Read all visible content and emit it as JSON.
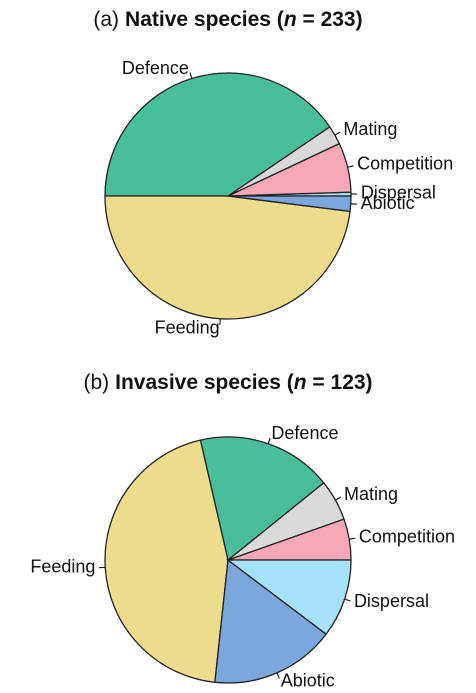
{
  "chart_data": [
    {
      "type": "pie",
      "panel": "(a)",
      "title": [
        "Native species (",
        "n",
        " = 233)"
      ],
      "categories": [
        "Dispersal",
        "Competition",
        "Mating",
        "Defence",
        "Feeding",
        "Abiotic"
      ],
      "values": [
        0.5,
        6.5,
        2.5,
        40.5,
        48,
        2
      ],
      "colors": [
        "#a6e1fa",
        "#f7a8b8",
        "#d9d9d9",
        "#48bf9a",
        "#ecdc8c",
        "#7ba7dd"
      ]
    },
    {
      "type": "pie",
      "panel": "(b)",
      "title": [
        "Invasive species (",
        "n",
        " = 123)"
      ],
      "categories": [
        "Competition",
        "Mating",
        "Defence",
        "Feeding",
        "Abiotic",
        "Dispersal"
      ],
      "values": [
        5.4,
        5.4,
        17.8,
        44.7,
        16.4,
        10.3
      ],
      "colors": [
        "#f7a8b8",
        "#d9d9d9",
        "#48bf9a",
        "#ecdc8c",
        "#7ba7dd",
        "#a6e1fa"
      ]
    }
  ]
}
